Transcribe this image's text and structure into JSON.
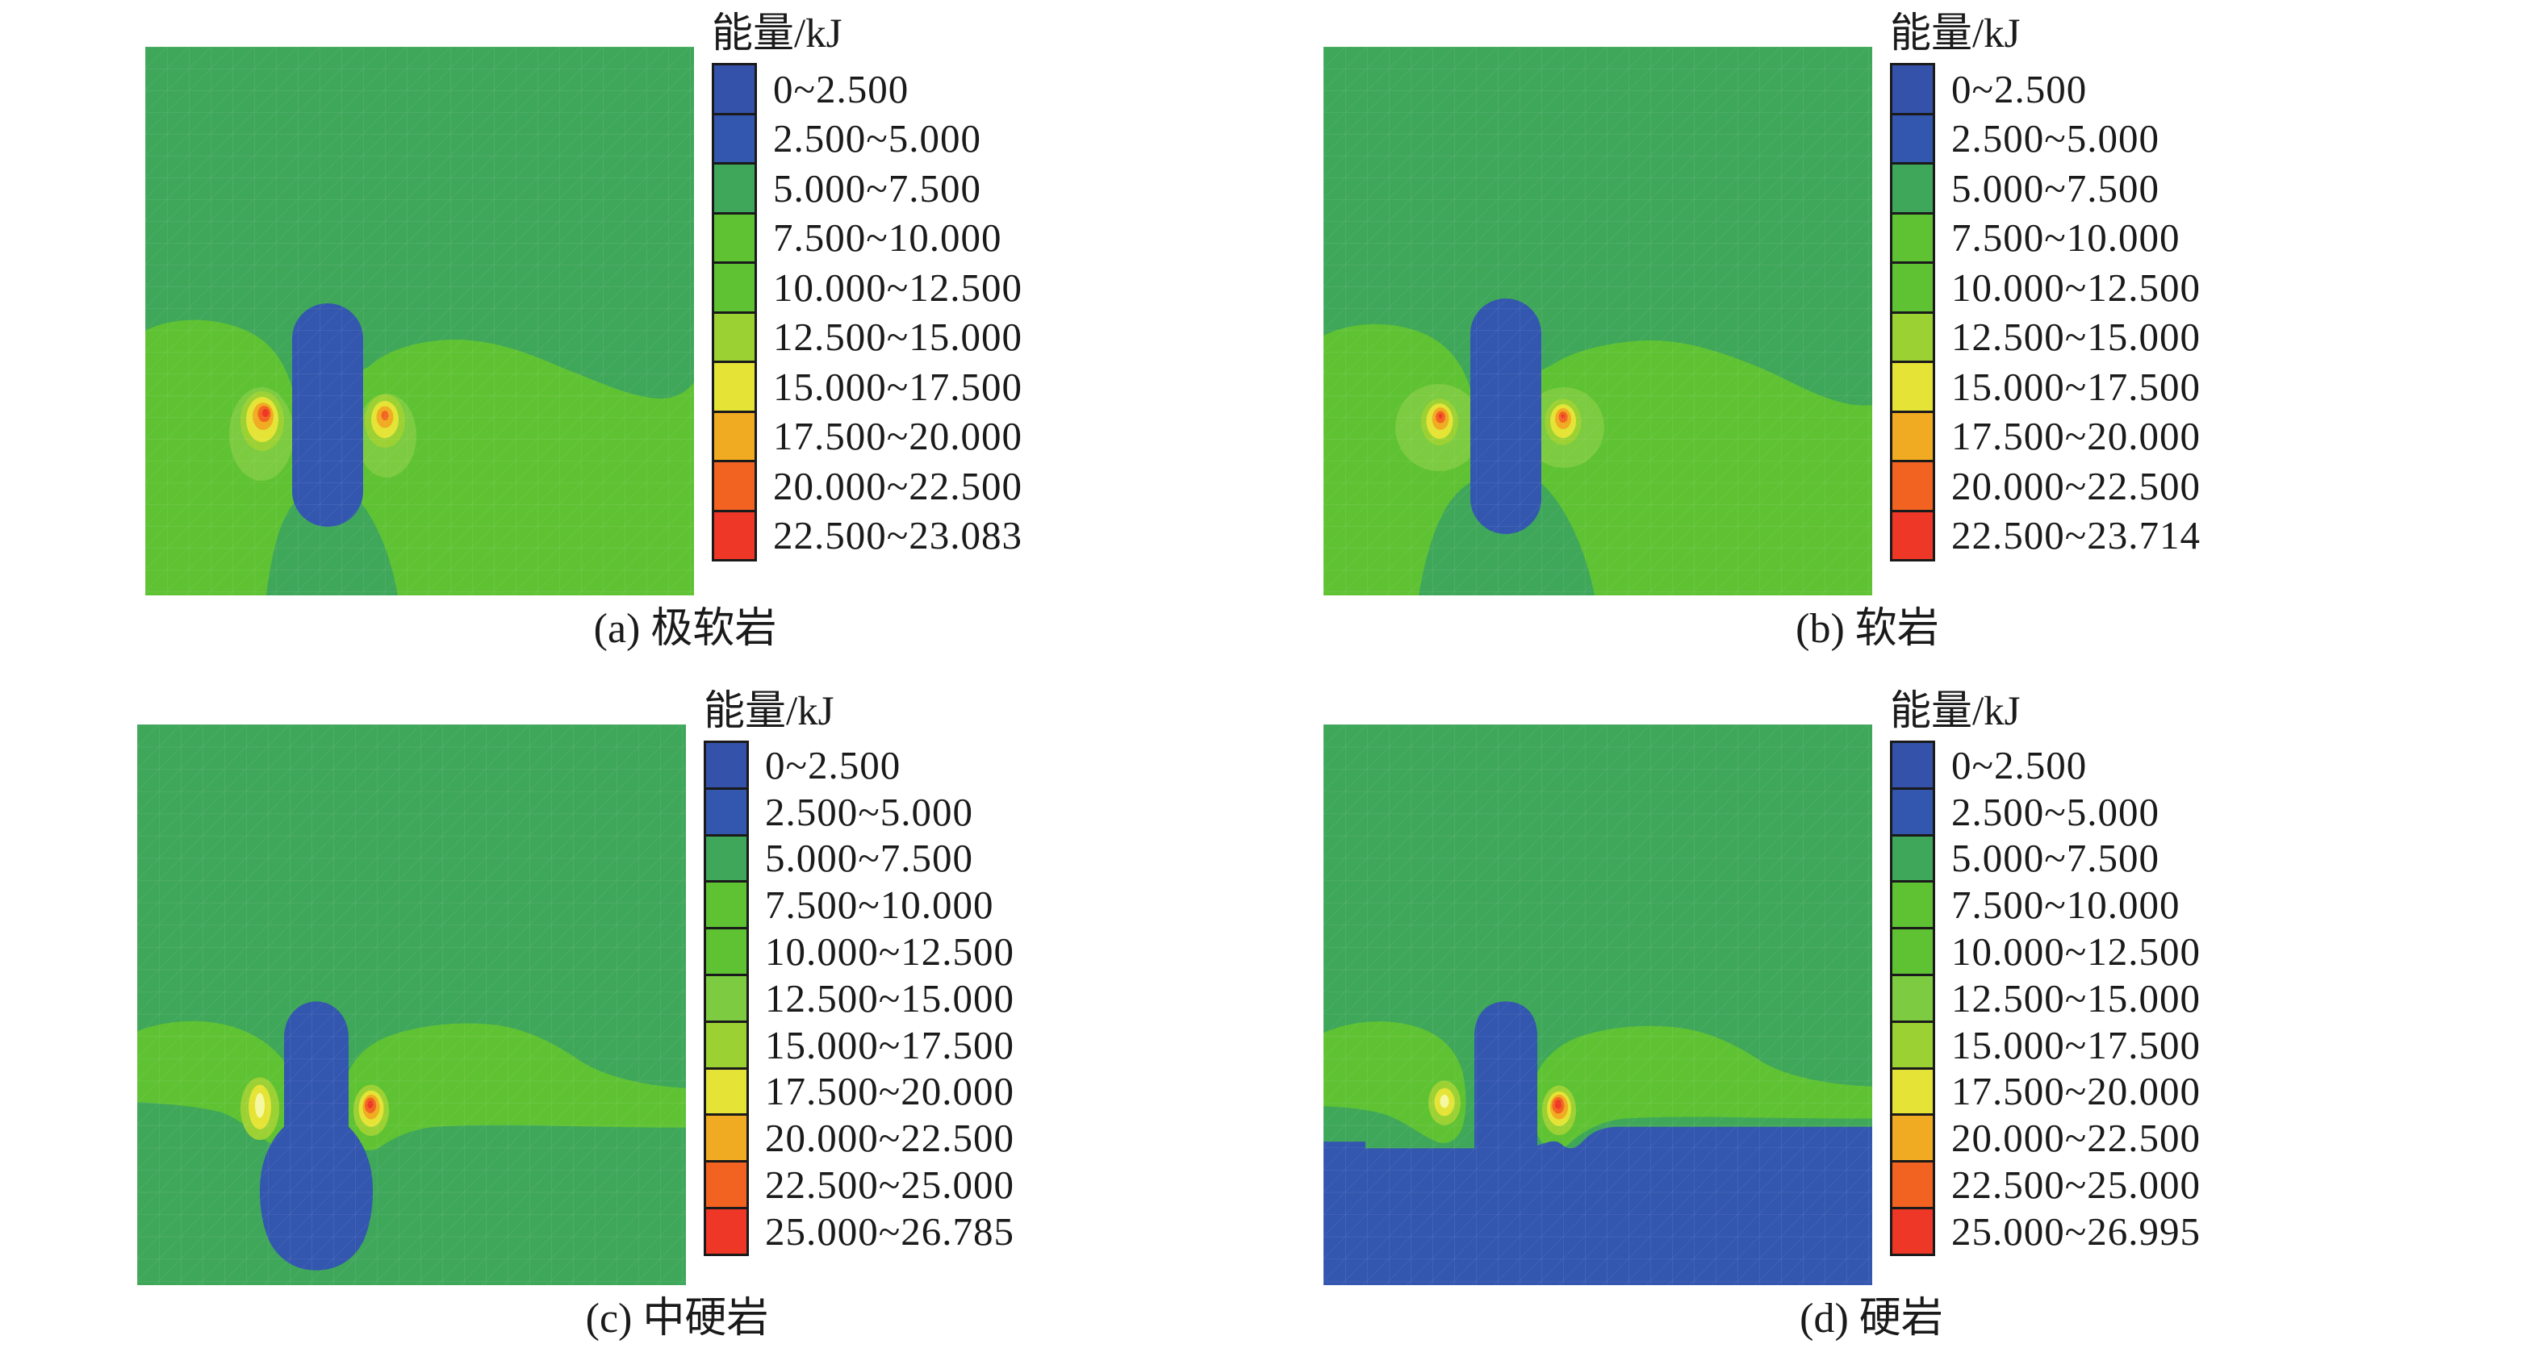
{
  "palette": {
    "blue1": "#3452A9",
    "blue2": "#3356AF",
    "sea_green": "#3FA75A",
    "green": "#5FC233",
    "green_light": "#7CCB40",
    "yellow_green": "#9CD134",
    "yellow": "#E5E436",
    "pale_yellow": "#F5F8A0",
    "orange": "#F0AB22",
    "orange_red": "#F26322",
    "red": "#EE3726",
    "text": "#1A1A1A",
    "background": "#FFFFFF"
  },
  "panels": [
    {
      "id": "a",
      "caption": "(a) 极软岩",
      "legend_title": "能量/kJ",
      "bins": [
        {
          "label": "0~2.500",
          "color": "blue1"
        },
        {
          "label": "2.500~5.000",
          "color": "blue2"
        },
        {
          "label": "5.000~7.500",
          "color": "sea_green"
        },
        {
          "label": "7.500~10.000",
          "color": "green"
        },
        {
          "label": "10.000~12.500",
          "color": "green"
        },
        {
          "label": "12.500~15.000",
          "color": "yellow_green"
        },
        {
          "label": "15.000~17.500",
          "color": "yellow"
        },
        {
          "label": "17.500~20.000",
          "color": "orange"
        },
        {
          "label": "20.000~22.500",
          "color": "orange_red"
        },
        {
          "label": "22.500~23.083",
          "color": "red"
        }
      ]
    },
    {
      "id": "b",
      "caption": "(b) 软岩",
      "legend_title": "能量/kJ",
      "bins": [
        {
          "label": "0~2.500",
          "color": "blue1"
        },
        {
          "label": "2.500~5.000",
          "color": "blue2"
        },
        {
          "label": "5.000~7.500",
          "color": "sea_green"
        },
        {
          "label": "7.500~10.000",
          "color": "green"
        },
        {
          "label": "10.000~12.500",
          "color": "green"
        },
        {
          "label": "12.500~15.000",
          "color": "yellow_green"
        },
        {
          "label": "15.000~17.500",
          "color": "yellow"
        },
        {
          "label": "17.500~20.000",
          "color": "orange"
        },
        {
          "label": "20.000~22.500",
          "color": "orange_red"
        },
        {
          "label": "22.500~23.714",
          "color": "red"
        }
      ]
    },
    {
      "id": "c",
      "caption": "(c) 中硬岩",
      "legend_title": "能量/kJ",
      "bins": [
        {
          "label": "0~2.500",
          "color": "blue1"
        },
        {
          "label": "2.500~5.000",
          "color": "blue2"
        },
        {
          "label": "5.000~7.500",
          "color": "sea_green"
        },
        {
          "label": "7.500~10.000",
          "color": "green"
        },
        {
          "label": "10.000~12.500",
          "color": "green"
        },
        {
          "label": "12.500~15.000",
          "color": "green_light"
        },
        {
          "label": "15.000~17.500",
          "color": "yellow_green"
        },
        {
          "label": "17.500~20.000",
          "color": "yellow"
        },
        {
          "label": "20.000~22.500",
          "color": "orange"
        },
        {
          "label": "22.500~25.000",
          "color": "orange_red"
        },
        {
          "label": "25.000~26.785",
          "color": "red"
        }
      ]
    },
    {
      "id": "d",
      "caption": "(d) 硬岩",
      "legend_title": "能量/kJ",
      "bins": [
        {
          "label": "0~2.500",
          "color": "blue1"
        },
        {
          "label": "2.500~5.000",
          "color": "blue2"
        },
        {
          "label": "5.000~7.500",
          "color": "sea_green"
        },
        {
          "label": "7.500~10.000",
          "color": "green"
        },
        {
          "label": "10.000~12.500",
          "color": "green"
        },
        {
          "label": "12.500~15.000",
          "color": "green_light"
        },
        {
          "label": "15.000~17.500",
          "color": "yellow_green"
        },
        {
          "label": "17.500~20.000",
          "color": "yellow"
        },
        {
          "label": "20.000~22.500",
          "color": "orange"
        },
        {
          "label": "22.500~25.000",
          "color": "orange_red"
        },
        {
          "label": "25.000~26.995",
          "color": "red"
        }
      ]
    }
  ],
  "chart_data": [
    {
      "type": "heatmap",
      "title": "(a) 极软岩",
      "legend_title": "能量/kJ",
      "unit": "kJ",
      "legend_position": "right",
      "bin_edges": [
        0,
        2.5,
        5,
        7.5,
        10,
        12.5,
        15,
        17.5,
        20,
        22.5,
        23.083
      ],
      "bin_labels": [
        "0~2.500",
        "2.500~5.000",
        "5.000~7.500",
        "7.500~10.000",
        "10.000~12.500",
        "12.500~15.000",
        "15.000~17.500",
        "17.500~20.000",
        "20.000~22.500",
        "22.500~23.083"
      ],
      "value_range": [
        0,
        23.083
      ]
    },
    {
      "type": "heatmap",
      "title": "(b) 软岩",
      "legend_title": "能量/kJ",
      "unit": "kJ",
      "legend_position": "right",
      "bin_edges": [
        0,
        2.5,
        5,
        7.5,
        10,
        12.5,
        15,
        17.5,
        20,
        22.5,
        23.714
      ],
      "bin_labels": [
        "0~2.500",
        "2.500~5.000",
        "5.000~7.500",
        "7.500~10.000",
        "10.000~12.500",
        "12.500~15.000",
        "15.000~17.500",
        "17.500~20.000",
        "20.000~22.500",
        "22.500~23.714"
      ],
      "value_range": [
        0,
        23.714
      ]
    },
    {
      "type": "heatmap",
      "title": "(c) 中硬岩",
      "legend_title": "能量/kJ",
      "unit": "kJ",
      "legend_position": "right",
      "bin_edges": [
        0,
        2.5,
        5,
        7.5,
        10,
        12.5,
        15,
        17.5,
        20,
        22.5,
        25,
        26.785
      ],
      "bin_labels": [
        "0~2.500",
        "2.500~5.000",
        "5.000~7.500",
        "7.500~10.000",
        "10.000~12.500",
        "12.500~15.000",
        "15.000~17.500",
        "17.500~20.000",
        "20.000~22.500",
        "22.500~25.000",
        "25.000~26.785"
      ],
      "value_range": [
        0,
        26.785
      ]
    },
    {
      "type": "heatmap",
      "title": "(d) 硬岩",
      "legend_title": "能量/kJ",
      "unit": "kJ",
      "legend_position": "right",
      "bin_edges": [
        0,
        2.5,
        5,
        7.5,
        10,
        12.5,
        15,
        17.5,
        20,
        22.5,
        25,
        26.995
      ],
      "bin_labels": [
        "0~2.500",
        "2.500~5.000",
        "5.000~7.500",
        "7.500~10.000",
        "10.000~12.500",
        "12.500~15.000",
        "15.000~17.500",
        "17.500~20.000",
        "20.000~22.500",
        "22.500~25.000",
        "25.000~26.995"
      ],
      "value_range": [
        0,
        26.995
      ]
    }
  ]
}
